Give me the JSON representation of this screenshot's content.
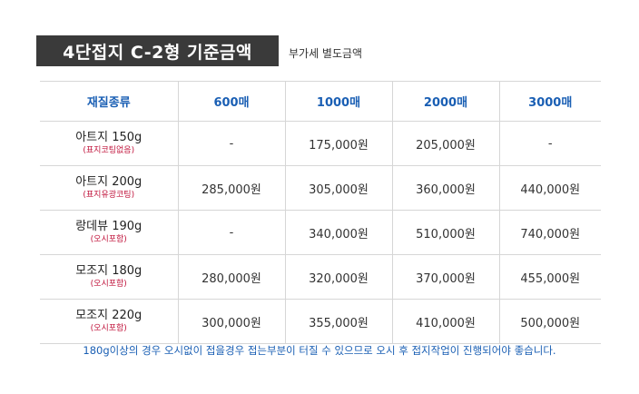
{
  "title": "4단접지 C-2형 기준금액",
  "subtitle": "부가세 별도금액",
  "table": {
    "headers": [
      "재질종류",
      "600매",
      "1000매",
      "2000매",
      "3000매"
    ],
    "rows": [
      {
        "name": "아트지 150g",
        "note": "(표지코팅없음)",
        "prices": [
          "-",
          "175,000원",
          "205,000원",
          "-"
        ]
      },
      {
        "name": "아트지 200g",
        "note": "(표지유광코팅)",
        "prices": [
          "285,000원",
          "305,000원",
          "360,000원",
          "440,000원"
        ]
      },
      {
        "name": "랑데뷰 190g",
        "note": "(오시포함)",
        "prices": [
          "-",
          "340,000원",
          "510,000원",
          "740,000원"
        ]
      },
      {
        "name": "모조지 180g",
        "note": "(오시포함)",
        "prices": [
          "280,000원",
          "320,000원",
          "370,000원",
          "455,000원"
        ]
      },
      {
        "name": "모조지 220g",
        "note": "(오시포함)",
        "prices": [
          "300,000원",
          "355,000원",
          "410,000원",
          "500,000원"
        ]
      }
    ]
  },
  "footnote": "180g이상의 경우 오시없이 접을경우 접는부분이 터질 수 있으므로 오시 후 접지작업이 진행되어야 좋습니다.",
  "colors": {
    "header_text": "#1a5fb4",
    "note_text": "#c0143c",
    "title_bg": "#3a3a3a"
  }
}
